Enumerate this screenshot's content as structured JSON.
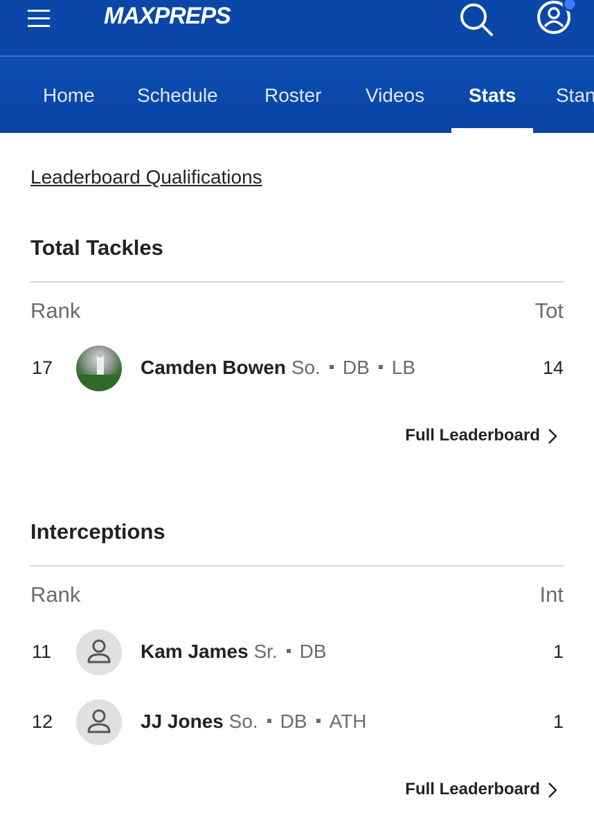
{
  "header": {
    "logo": "MAXPREPS"
  },
  "tabs": [
    "Home",
    "Schedule",
    "Roster",
    "Videos",
    "Stats",
    "Standings"
  ],
  "active_tab": 4,
  "qualifications_link": "Leaderboard Qualifications",
  "sections": [
    {
      "title": "Total Tackles",
      "rank_header": "Rank",
      "value_header": "Tot",
      "rows": [
        {
          "rank": 17,
          "name": "Camden Bowen",
          "details": [
            "So.",
            "DB",
            "LB"
          ],
          "value": 14
        }
      ],
      "footer_link": "Full Leaderboard"
    },
    {
      "title": "Interceptions",
      "rank_header": "Rank",
      "value_header": "Int",
      "rows": [
        {
          "rank": 11,
          "name": "Kam James",
          "details": [
            "Sr.",
            "DB"
          ],
          "value": 1
        },
        {
          "rank": 12,
          "name": "JJ Jones",
          "details": [
            "So.",
            "DB",
            "ATH"
          ],
          "value": 1
        }
      ],
      "footer_link": "Full Leaderboard"
    }
  ]
}
